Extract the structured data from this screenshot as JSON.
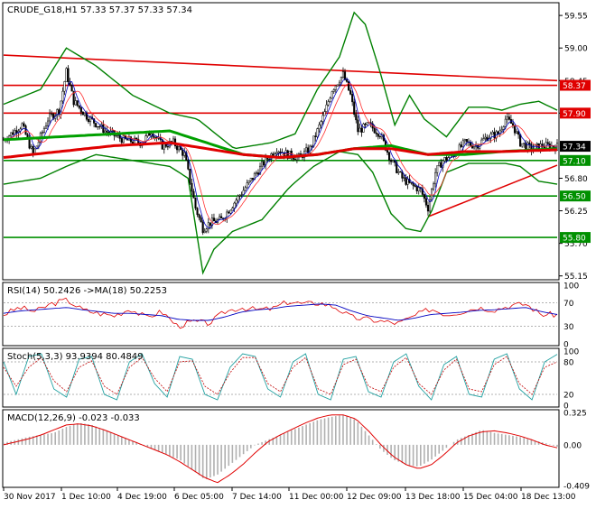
{
  "colors": {
    "background": "#ffffff",
    "frame": "#000000",
    "candle": "#000000",
    "bollinger": "#008000",
    "ma_fast": "#00a000",
    "ma_slow": "#e00000",
    "ma_mid": "#ff3030",
    "ma_short": "#0000c0",
    "level_red": "#e00000",
    "level_green": "#009000",
    "rsi_line": "#e00000",
    "rsi_signal": "#0000c0",
    "stoch_main": "#20a0a0",
    "stoch_signal": "#c00000",
    "macd_hist": "#b0b0b0",
    "macd_signal": "#e00000",
    "price_label_bg": "#000000",
    "price_label_text": "#ffffff"
  },
  "chart_data": [
    {
      "type": "candlestick",
      "title": "CRUDE_G18,H1  57.33 57.37 57.33 57.34",
      "ylim": [
        55.1,
        59.75
      ],
      "y_ticks": [
        "59.55",
        "59.00",
        "58.45",
        "57.90",
        "57.34",
        "56.80",
        "56.25",
        "55.70",
        "55.15"
      ],
      "y_tick_values": [
        59.55,
        59.0,
        58.45,
        57.9,
        57.34,
        56.8,
        56.25,
        55.7,
        55.15
      ],
      "x_ticks": [
        "30 Nov 2017",
        "1 Dec 10:00",
        "4 Dec 19:00",
        "6 Dec 05:00",
        "7 Dec 14:00",
        "11 Dec 00:00",
        "12 Dec 09:00",
        "13 Dec 18:00",
        "15 Dec 04:00",
        "18 Dec 13:00"
      ],
      "current_price": {
        "value": 57.34,
        "label": "57.34"
      },
      "horizontal_levels": [
        {
          "value": 58.37,
          "label": "58.37",
          "color": "#e00000"
        },
        {
          "value": 57.9,
          "label": "57.90",
          "color": "#e00000"
        },
        {
          "value": 57.1,
          "label": "57.10",
          "color": "#009000"
        },
        {
          "value": 56.5,
          "label": "56.50",
          "color": "#009000"
        },
        {
          "value": 55.8,
          "label": "55.80",
          "color": "#009000"
        }
      ],
      "trendlines": [
        {
          "color": "#e00000",
          "x_index": [
            0,
            300
          ],
          "y": [
            58.88,
            58.45
          ]
        },
        {
          "color": "#e00000",
          "x_index": [
            230,
            300
          ],
          "y": [
            56.15,
            57.02
          ]
        }
      ],
      "close_path": [
        [
          0,
          57.45
        ],
        [
          10,
          57.7
        ],
        [
          16,
          57.2
        ],
        [
          24,
          57.8
        ],
        [
          30,
          57.95
        ],
        [
          34,
          58.6
        ],
        [
          38,
          58.1
        ],
        [
          45,
          57.85
        ],
        [
          55,
          57.6
        ],
        [
          65,
          57.45
        ],
        [
          75,
          57.4
        ],
        [
          80,
          57.6
        ],
        [
          86,
          57.35
        ],
        [
          92,
          57.4
        ],
        [
          98,
          57.2
        ],
        [
          104,
          56.3
        ],
        [
          108,
          55.95
        ],
        [
          112,
          56.05
        ],
        [
          118,
          56.1
        ],
        [
          124,
          56.35
        ],
        [
          130,
          56.6
        ],
        [
          136,
          56.85
        ],
        [
          142,
          57.1
        ],
        [
          148,
          57.3
        ],
        [
          154,
          57.2
        ],
        [
          160,
          57.15
        ],
        [
          166,
          57.3
        ],
        [
          170,
          57.6
        ],
        [
          174,
          57.9
        ],
        [
          178,
          58.3
        ],
        [
          184,
          58.55
        ],
        [
          188,
          58.2
        ],
        [
          192,
          57.6
        ],
        [
          198,
          57.7
        ],
        [
          204,
          57.55
        ],
        [
          210,
          57.1
        ],
        [
          216,
          56.8
        ],
        [
          220,
          56.7
        ],
        [
          226,
          56.6
        ],
        [
          230,
          56.3
        ],
        [
          234,
          56.9
        ],
        [
          238,
          57.1
        ],
        [
          244,
          57.2
        ],
        [
          250,
          57.4
        ],
        [
          256,
          57.35
        ],
        [
          262,
          57.5
        ],
        [
          268,
          57.55
        ],
        [
          272,
          57.8
        ],
        [
          276,
          57.7
        ],
        [
          280,
          57.4
        ],
        [
          286,
          57.3
        ],
        [
          292,
          57.35
        ],
        [
          300,
          57.34
        ]
      ],
      "bollinger_upper": [
        [
          0,
          58.05
        ],
        [
          20,
          58.3
        ],
        [
          34,
          59.0
        ],
        [
          50,
          58.7
        ],
        [
          70,
          58.2
        ],
        [
          90,
          57.9
        ],
        [
          105,
          57.8
        ],
        [
          125,
          57.3
        ],
        [
          145,
          57.4
        ],
        [
          158,
          57.55
        ],
        [
          170,
          58.3
        ],
        [
          182,
          58.85
        ],
        [
          190,
          59.6
        ],
        [
          196,
          59.4
        ],
        [
          204,
          58.6
        ],
        [
          212,
          57.7
        ],
        [
          220,
          58.2
        ],
        [
          228,
          57.8
        ],
        [
          240,
          57.5
        ],
        [
          252,
          58.0
        ],
        [
          262,
          58.0
        ],
        [
          270,
          57.95
        ],
        [
          280,
          58.05
        ],
        [
          290,
          58.1
        ],
        [
          300,
          57.95
        ]
      ],
      "bollinger_lower": [
        [
          0,
          56.7
        ],
        [
          20,
          56.8
        ],
        [
          34,
          57.0
        ],
        [
          50,
          57.2
        ],
        [
          70,
          57.1
        ],
        [
          90,
          57.0
        ],
        [
          100,
          56.8
        ],
        [
          108,
          55.2
        ],
        [
          114,
          55.6
        ],
        [
          124,
          55.9
        ],
        [
          140,
          56.1
        ],
        [
          155,
          56.65
        ],
        [
          168,
          57.0
        ],
        [
          182,
          57.25
        ],
        [
          192,
          57.2
        ],
        [
          200,
          56.9
        ],
        [
          210,
          56.2
        ],
        [
          218,
          55.95
        ],
        [
          226,
          55.9
        ],
        [
          232,
          56.25
        ],
        [
          240,
          56.9
        ],
        [
          252,
          57.05
        ],
        [
          262,
          57.05
        ],
        [
          272,
          57.05
        ],
        [
          280,
          57.0
        ],
        [
          290,
          56.75
        ],
        [
          300,
          56.7
        ]
      ],
      "ma_fast": [
        [
          0,
          57.45
        ],
        [
          30,
          57.5
        ],
        [
          60,
          57.55
        ],
        [
          90,
          57.6
        ],
        [
          110,
          57.4
        ],
        [
          130,
          57.2
        ],
        [
          150,
          57.15
        ],
        [
          170,
          57.2
        ],
        [
          190,
          57.3
        ],
        [
          210,
          57.35
        ],
        [
          230,
          57.2
        ],
        [
          250,
          57.2
        ],
        [
          270,
          57.25
        ],
        [
          300,
          57.3
        ]
      ],
      "ma_slow": [
        [
          0,
          57.15
        ],
        [
          30,
          57.25
        ],
        [
          60,
          57.35
        ],
        [
          90,
          57.4
        ],
        [
          110,
          57.3
        ],
        [
          130,
          57.2
        ],
        [
          150,
          57.15
        ],
        [
          170,
          57.2
        ],
        [
          190,
          57.3
        ],
        [
          210,
          57.3
        ],
        [
          230,
          57.2
        ],
        [
          250,
          57.25
        ],
        [
          270,
          57.25
        ],
        [
          300,
          57.28
        ]
      ]
    },
    {
      "type": "line",
      "title": "RSI(14) 50.2426 ->MA(18) 50.2253",
      "ylim": [
        0,
        100
      ],
      "y_ticks": [
        "100",
        "70",
        "30",
        "0"
      ],
      "y_tick_values": [
        100,
        70,
        30,
        0
      ],
      "levels": [
        70,
        30
      ],
      "series": [
        {
          "values": [
            50,
            62,
            55,
            68,
            75,
            58,
            52,
            48,
            60,
            45,
            55,
            30,
            38,
            35,
            55,
            62,
            58,
            60,
            72,
            68,
            70,
            62,
            45,
            42,
            38,
            35,
            48,
            60,
            50,
            55,
            62,
            58,
            65,
            68,
            50,
            50
          ]
        },
        {
          "values": [
            52,
            56,
            58,
            60,
            62,
            58,
            55,
            52,
            52,
            50,
            48,
            42,
            40,
            40,
            46,
            54,
            58,
            60,
            64,
            66,
            68,
            66,
            56,
            48,
            44,
            40,
            44,
            50,
            52,
            54,
            57,
            58,
            60,
            62,
            55,
            50
          ]
        }
      ]
    },
    {
      "type": "line",
      "title": "Stoch(5,3,3) 93.9394 80.4849",
      "ylim": [
        0,
        100
      ],
      "y_ticks": [
        "100",
        "80",
        "20",
        "0"
      ],
      "y_tick_values": [
        100,
        80,
        20,
        0
      ],
      "levels": [
        80,
        20
      ],
      "series": [
        {
          "values": [
            80,
            20,
            90,
            95,
            30,
            15,
            85,
            90,
            20,
            10,
            80,
            95,
            40,
            15,
            90,
            85,
            20,
            10,
            70,
            95,
            90,
            30,
            15,
            80,
            95,
            20,
            10,
            85,
            90,
            25,
            15,
            80,
            95,
            35,
            10,
            75,
            90,
            20,
            15,
            85,
            95,
            30,
            10,
            80,
            94
          ]
        },
        {
          "values": [
            70,
            35,
            70,
            88,
            45,
            25,
            70,
            82,
            35,
            20,
            70,
            88,
            50,
            25,
            80,
            82,
            35,
            20,
            60,
            88,
            88,
            40,
            25,
            70,
            88,
            30,
            20,
            75,
            85,
            35,
            25,
            70,
            88,
            40,
            20,
            65,
            85,
            30,
            25,
            75,
            90,
            40,
            20,
            70,
            80
          ]
        }
      ]
    },
    {
      "type": "bar",
      "title": "MACD(12,26,9) -0.023 -0.033",
      "ylim": [
        -0.409,
        0.325
      ],
      "y_ticks": [
        "0.325",
        "0.00",
        "-0.409"
      ],
      "y_tick_values": [
        0.325,
        0.0,
        -0.409
      ],
      "histogram": [
        0.02,
        0.05,
        0.08,
        0.1,
        0.12,
        0.18,
        0.22,
        0.2,
        0.15,
        0.1,
        0.05,
        0.0,
        -0.05,
        -0.1,
        -0.15,
        -0.25,
        -0.35,
        -0.3,
        -0.2,
        -0.1,
        0.0,
        0.05,
        0.1,
        0.15,
        0.2,
        0.25,
        0.28,
        0.3,
        0.25,
        0.1,
        -0.05,
        -0.15,
        -0.2,
        -0.22,
        -0.15,
        -0.05,
        0.05,
        0.1,
        0.15,
        0.12,
        0.1,
        0.08,
        0.05,
        0.02,
        -0.02
      ],
      "signal": [
        0.0,
        0.03,
        0.06,
        0.1,
        0.15,
        0.2,
        0.21,
        0.19,
        0.15,
        0.1,
        0.05,
        0.0,
        -0.05,
        -0.1,
        -0.17,
        -0.25,
        -0.33,
        -0.38,
        -0.3,
        -0.2,
        -0.08,
        0.03,
        0.1,
        0.16,
        0.22,
        0.27,
        0.3,
        0.3,
        0.26,
        0.14,
        0.0,
        -0.12,
        -0.2,
        -0.24,
        -0.2,
        -0.1,
        0.02,
        0.09,
        0.13,
        0.14,
        0.12,
        0.09,
        0.05,
        0.0,
        -0.03
      ]
    }
  ]
}
